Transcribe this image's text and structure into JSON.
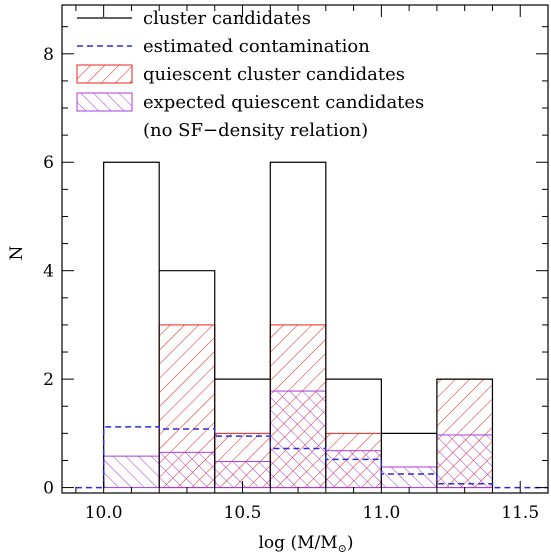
{
  "chart_data": {
    "type": "bar",
    "xlabel": "log (M/M",
    "xlabel_sub": "⊙",
    "xlabel_close": ")",
    "ylabel": "N",
    "xlim": [
      9.85,
      11.6
    ],
    "ylim": [
      -0.1,
      8.9
    ],
    "xticks": [
      {
        "value": 10.0,
        "label": "10.0"
      },
      {
        "value": 10.5,
        "label": "10.5"
      },
      {
        "value": 11.0,
        "label": "11.0"
      },
      {
        "value": 11.5,
        "label": "11.5"
      }
    ],
    "yticks": [
      {
        "value": 0,
        "label": "0"
      },
      {
        "value": 2,
        "label": "2"
      },
      {
        "value": 4,
        "label": "4"
      },
      {
        "value": 6,
        "label": "6"
      },
      {
        "value": 8,
        "label": "8"
      }
    ],
    "bin_edges": [
      10.0,
      10.2,
      10.4,
      10.6,
      10.8,
      11.0,
      11.2,
      11.4
    ],
    "series": [
      {
        "name": "cluster candidates",
        "style": "solid-step",
        "color": "#000000",
        "values": [
          6,
          4,
          2,
          6,
          2,
          1,
          2
        ]
      },
      {
        "name": "estimated contamination",
        "style": "dashed-step",
        "color": "#2b2bdc",
        "values": [
          1.12,
          1.08,
          0.95,
          0.72,
          0.52,
          0.25,
          0.07
        ],
        "extension": [
          {
            "x": [
              9.9,
              10.0
            ],
            "y": 0.0
          },
          {
            "x": [
              11.4,
              11.6
            ],
            "y": 0.0
          }
        ]
      },
      {
        "name": "quiescent cluster candidates",
        "style": "hatch-up",
        "color": "#e8221b",
        "values": [
          0,
          3,
          1,
          3,
          1,
          0,
          2
        ]
      },
      {
        "name": "expected quiescent candidates",
        "style": "hatch-down",
        "color": "#a43ce0",
        "values": [
          0.58,
          0.65,
          0.48,
          1.78,
          0.68,
          0.38,
          0.97
        ]
      }
    ],
    "legend_extra": "(no SF−density relation)",
    "legend_position": "top-left"
  }
}
